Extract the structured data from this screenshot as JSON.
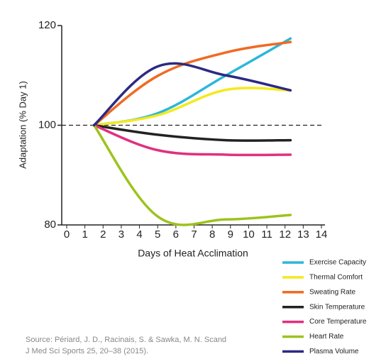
{
  "chart_data": {
    "type": "line",
    "x_label": "Days of Heat Acclimation",
    "y_label": "Adaptation (% Day 1)",
    "x": [
      1.5,
      5,
      8.75,
      12.3
    ],
    "xlim": [
      0,
      14
    ],
    "xticks": [
      0,
      1,
      2,
      3,
      4,
      5,
      6,
      7,
      8,
      9,
      10,
      11,
      12,
      13,
      14
    ],
    "ylim": [
      80,
      120
    ],
    "yticks": [
      80,
      100,
      120
    ],
    "reference_line": 100,
    "legend": "bottom-right",
    "series": [
      {
        "name": "Exercise Capacity",
        "color": "#2bb7da",
        "values": [
          100,
          102.4,
          110,
          117.4
        ]
      },
      {
        "name": "Thermal Comfort",
        "color": "#f4ea1e",
        "values": [
          100,
          102,
          107.1,
          107
        ]
      },
      {
        "name": "Sweating Rate",
        "color": "#f06a22",
        "values": [
          100,
          109.9,
          114.6,
          116.7
        ]
      },
      {
        "name": "Skin Temperature",
        "color": "#222222",
        "values": [
          100,
          98.1,
          97,
          97
        ]
      },
      {
        "name": "Core Temperature",
        "color": "#e0307e",
        "values": [
          100,
          95,
          94.1,
          94.1
        ]
      },
      {
        "name": "Heart Rate",
        "color": "#9dc31d",
        "values": [
          100,
          81.7,
          81.1,
          82
        ]
      },
      {
        "name": "Plasma Volume",
        "color": "#2b2a82",
        "values": [
          100,
          111.8,
          110,
          107
        ]
      }
    ],
    "source": [
      "Source: Périard, J. D., Racinais, S. & Sawka, M. N. Scand",
      "J Med Sci Sports 25, 20–38 (2015)."
    ]
  }
}
